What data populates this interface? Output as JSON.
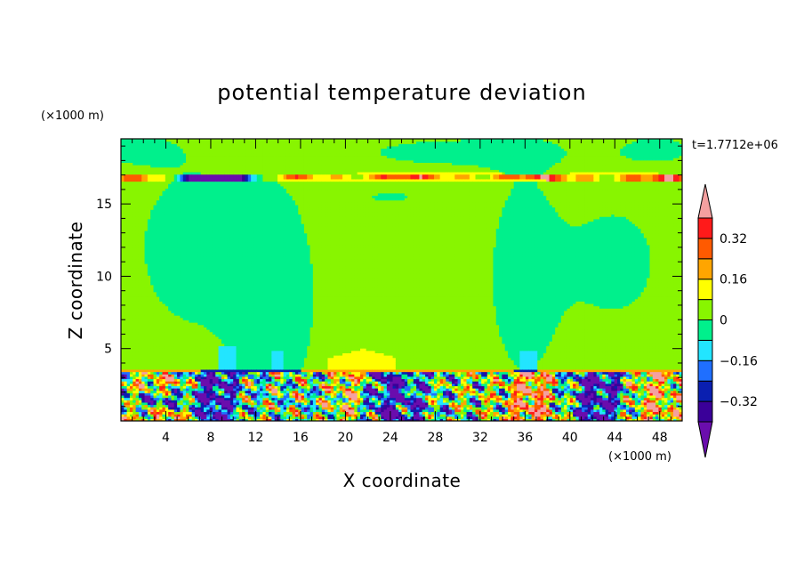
{
  "chart_data": {
    "type": "heatmap",
    "title": "potential temperature deviation",
    "xlabel": "X coordinate",
    "ylabel": "Z coordinate",
    "x_unit": "(×1000 m)",
    "y_unit": "(×1000 m)",
    "time_label": "t=1.7712e+06",
    "xlim": [
      0,
      50
    ],
    "ylim": [
      0,
      19.5
    ],
    "x_ticks": [
      4,
      8,
      12,
      16,
      20,
      24,
      28,
      32,
      36,
      40,
      44,
      48
    ],
    "y_ticks": [
      5,
      10,
      15
    ],
    "colorbar": {
      "levels": [
        -0.4,
        -0.32,
        -0.24,
        -0.16,
        -0.08,
        0,
        0.08,
        0.16,
        0.24,
        0.32,
        0.4
      ],
      "tick_labels": [
        "0.32",
        "0.16",
        "0",
        "−0.16",
        "−0.32"
      ],
      "tick_values": [
        0.32,
        0.16,
        0,
        -0.16,
        -0.32
      ],
      "colors": [
        "#6a0dad",
        "#3a0099",
        "#0a1fb0",
        "#1f6fff",
        "#22e5ff",
        "#00f08c",
        "#88f500",
        "#ffff00",
        "#ffa500",
        "#ff5a00",
        "#ff1a1a",
        "#f4a0a0"
      ]
    },
    "fields": {
      "background_upper_value": 0.04,
      "background_lower_value": -0.04,
      "tropopause_band_z": [
        16.6,
        17.0
      ],
      "boundary_layer_top_z": 3.5,
      "boundary_layer_range": [
        -0.45,
        0.4
      ]
    }
  }
}
